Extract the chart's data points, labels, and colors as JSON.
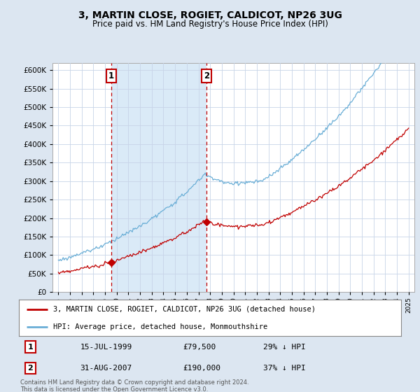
{
  "title": "3, MARTIN CLOSE, ROGIET, CALDICOT, NP26 3UG",
  "subtitle": "Price paid vs. HM Land Registry's House Price Index (HPI)",
  "legend_line1": "3, MARTIN CLOSE, ROGIET, CALDICOT, NP26 3UG (detached house)",
  "legend_line2": "HPI: Average price, detached house, Monmouthshire",
  "footnote": "Contains HM Land Registry data © Crown copyright and database right 2024.\nThis data is licensed under the Open Government Licence v3.0.",
  "sale1_label": "1",
  "sale1_date_str": "15-JUL-1999",
  "sale1_price_str": "£79,500",
  "sale1_hpi_str": "29% ↓ HPI",
  "sale1_year": 1999.54,
  "sale1_price": 79500,
  "sale2_label": "2",
  "sale2_date_str": "31-AUG-2007",
  "sale2_price_str": "£190,000",
  "sale2_hpi_str": "37% ↓ HPI",
  "sale2_year": 2007.67,
  "sale2_price": 190000,
  "ylim": [
    0,
    620000
  ],
  "xlim_start": 1994.5,
  "xlim_end": 2025.5,
  "hpi_color": "#6aaed6",
  "hpi_fill_color": "#daeaf7",
  "property_color": "#c00000",
  "background_color": "#dce6f1",
  "plot_bg_color": "#ffffff",
  "grid_color": "#c8d4e8",
  "marker_box_color": "#c00000"
}
